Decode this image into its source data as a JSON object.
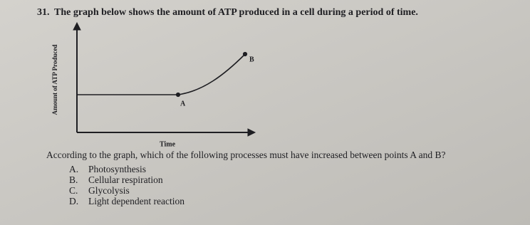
{
  "question": {
    "number": "31.",
    "text": "The graph below shows the amount of ATP produced in a cell during a period of time."
  },
  "graph": {
    "y_axis_label": "Amount of ATP Produced",
    "x_axis_label": "Time",
    "point_a": "A",
    "point_b": "B"
  },
  "prompt": "According to the graph, which of the following processes must have increased between points A and B?",
  "choices": [
    {
      "letter": "A.",
      "text": "Photosynthesis"
    },
    {
      "letter": "B.",
      "text": "Cellular respiration"
    },
    {
      "letter": "C.",
      "text": "Glycolysis"
    },
    {
      "letter": "D.",
      "text": "Light dependent reaction"
    }
  ]
}
